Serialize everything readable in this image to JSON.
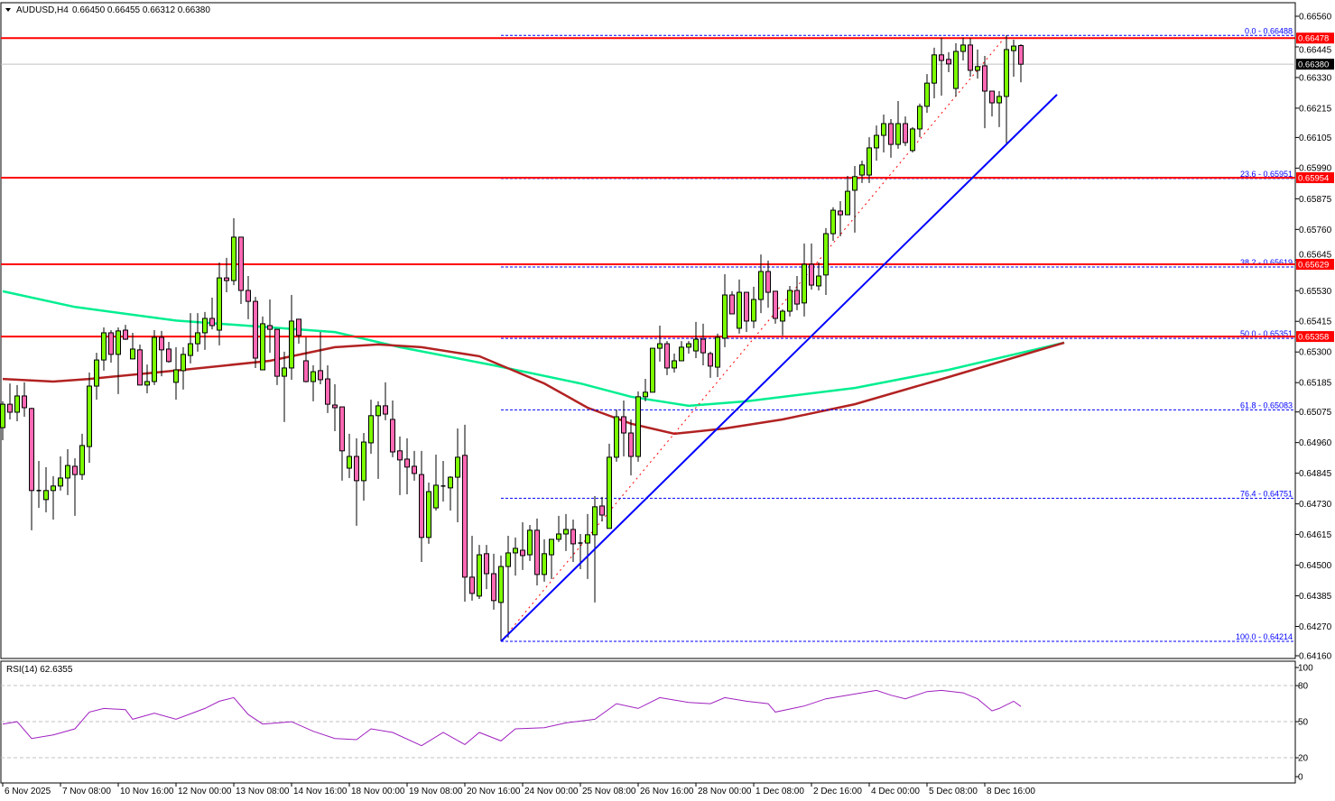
{
  "header": {
    "symbol": "AUDUSD,H4",
    "ohlc": "0.66450 0.66455 0.66312 0.66380",
    "menu_icon": "triangle-down-icon"
  },
  "chart_data": {
    "type": "candlestick",
    "symbol": "AUDUSD",
    "timeframe": "H4",
    "ylim": [
      0.6415,
      0.6661
    ],
    "grid": false,
    "y_ticks": [
      "0.66560",
      "0.66445",
      "0.66330",
      "0.66215",
      "0.66105",
      "0.65990",
      "0.65875",
      "0.65760",
      "0.65645",
      "0.65530",
      "0.65415",
      "0.65300",
      "0.65185",
      "0.65075",
      "0.64960",
      "0.64845",
      "0.64730",
      "0.64615",
      "0.64500",
      "0.64385",
      "0.64270",
      "0.64160"
    ],
    "x_labels": [
      "6 Nov 2025",
      "7 Nov 08:00",
      "10 Nov 16:00",
      "12 Nov 00:00",
      "13 Nov 08:00",
      "14 Nov 16:00",
      "18 Nov 00:00",
      "19 Nov 08:00",
      "20 Nov 16:00",
      "24 Nov 00:00",
      "25 Nov 08:00",
      "26 Nov 16:00",
      "28 Nov 00:00",
      "1 Dec 08:00",
      "2 Dec 16:00",
      "4 Dec 00:00",
      "5 Dec 08:00",
      "8 Dec 16:00"
    ],
    "candle_fields": [
      "open",
      "high",
      "low",
      "close"
    ],
    "candles": [
      [
        0.65016,
        0.65115,
        0.64969,
        0.65104
      ],
      [
        0.65104,
        0.65182,
        0.65047,
        0.65074
      ],
      [
        0.65074,
        0.65176,
        0.6504,
        0.65135
      ],
      [
        0.65135,
        0.65186,
        0.65057,
        0.65091
      ],
      [
        0.65088,
        0.65091,
        0.64631,
        0.6478
      ],
      [
        0.6478,
        0.64891,
        0.64715,
        0.64776
      ],
      [
        0.64746,
        0.64868,
        0.64698,
        0.6478
      ],
      [
        0.6478,
        0.64834,
        0.64671,
        0.64797
      ],
      [
        0.64797,
        0.64908,
        0.6478,
        0.64827
      ],
      [
        0.64827,
        0.64935,
        0.64763,
        0.64874
      ],
      [
        0.64871,
        0.64901,
        0.64685,
        0.6484
      ],
      [
        0.6484,
        0.64993,
        0.6482,
        0.64949
      ],
      [
        0.64945,
        0.65223,
        0.64884,
        0.65172
      ],
      [
        0.65172,
        0.65297,
        0.65121,
        0.6527
      ],
      [
        0.6527,
        0.65392,
        0.6523,
        0.65372
      ],
      [
        0.65372,
        0.65382,
        0.6526,
        0.65291
      ],
      [
        0.65291,
        0.65392,
        0.65142,
        0.65379
      ],
      [
        0.65382,
        0.65402,
        0.65345,
        0.65348
      ],
      [
        0.65274,
        0.65372,
        0.65274,
        0.65311
      ],
      [
        0.65308,
        0.65328,
        0.65176,
        0.65176
      ],
      [
        0.65176,
        0.65253,
        0.65145,
        0.65189
      ],
      [
        0.65189,
        0.65382,
        0.65176,
        0.65355
      ],
      [
        0.65355,
        0.65379,
        0.65209,
        0.65308
      ],
      [
        0.65311,
        0.65338,
        0.6526,
        0.65264
      ],
      [
        0.65186,
        0.65318,
        0.65121,
        0.65233
      ],
      [
        0.6523,
        0.65318,
        0.65159,
        0.65291
      ],
      [
        0.65287,
        0.65446,
        0.65257,
        0.65331
      ],
      [
        0.65331,
        0.65446,
        0.65301,
        0.65372
      ],
      [
        0.65372,
        0.6545,
        0.65308,
        0.65426
      ],
      [
        0.65426,
        0.65504,
        0.65385,
        0.65399
      ],
      [
        0.65382,
        0.65636,
        0.65325,
        0.65578
      ],
      [
        0.65578,
        0.65653,
        0.65524,
        0.65568
      ],
      [
        0.65568,
        0.65802,
        0.65551,
        0.65731
      ],
      [
        0.65731,
        0.65731,
        0.6548,
        0.65531
      ],
      [
        0.65531,
        0.65585,
        0.65423,
        0.6549
      ],
      [
        0.6549,
        0.65507,
        0.6524,
        0.65277
      ],
      [
        0.65233,
        0.65433,
        0.65233,
        0.65406
      ],
      [
        0.65399,
        0.65497,
        0.65297,
        0.65385
      ],
      [
        0.65385,
        0.65385,
        0.65176,
        0.65209
      ],
      [
        0.65209,
        0.65301,
        0.65037,
        0.6524
      ],
      [
        0.6524,
        0.65514,
        0.65196,
        0.65416
      ],
      [
        0.65423,
        0.65423,
        0.65331,
        0.65362
      ],
      [
        0.65267,
        0.65355,
        0.65186,
        0.65189
      ],
      [
        0.65189,
        0.6525,
        0.65115,
        0.65226
      ],
      [
        0.6523,
        0.65375,
        0.65179,
        0.65196
      ],
      [
        0.65199,
        0.6525,
        0.65071,
        0.65104
      ],
      [
        0.65101,
        0.65179,
        0.65003,
        0.65091
      ],
      [
        0.65094,
        0.65094,
        0.64817,
        0.64929
      ],
      [
        0.64864,
        0.64993,
        0.64827,
        0.64908
      ],
      [
        0.64908,
        0.64976,
        0.64648,
        0.64817
      ],
      [
        0.64817,
        0.64996,
        0.64742,
        0.64962
      ],
      [
        0.64959,
        0.65121,
        0.64918,
        0.65061
      ],
      [
        0.65061,
        0.65115,
        0.64824,
        0.65098
      ],
      [
        0.65098,
        0.65186,
        0.65044,
        0.65067
      ],
      [
        0.65047,
        0.65118,
        0.64905,
        0.64925
      ],
      [
        0.64929,
        0.64983,
        0.64763,
        0.64895
      ],
      [
        0.64898,
        0.64976,
        0.64766,
        0.64868
      ],
      [
        0.64871,
        0.64929,
        0.64817,
        0.64844
      ],
      [
        0.6484,
        0.64929,
        0.64512,
        0.64604
      ],
      [
        0.64604,
        0.6481,
        0.6458,
        0.64776
      ],
      [
        0.64715,
        0.64915,
        0.64705,
        0.648
      ],
      [
        0.64797,
        0.64891,
        0.64739,
        0.64797
      ],
      [
        0.6479,
        0.64834,
        0.64705,
        0.6483
      ],
      [
        0.6483,
        0.65013,
        0.64661,
        0.64905
      ],
      [
        0.64912,
        0.65027,
        0.64363,
        0.64455
      ],
      [
        0.64455,
        0.6461,
        0.64367,
        0.64394
      ],
      [
        0.64384,
        0.64576,
        0.64373,
        0.64539
      ],
      [
        0.64543,
        0.64576,
        0.6441,
        0.64468
      ],
      [
        0.64468,
        0.64543,
        0.64333,
        0.64367
      ],
      [
        0.6436,
        0.64536,
        0.64214,
        0.64495
      ],
      [
        0.64495,
        0.6461,
        0.64228,
        0.64546
      ],
      [
        0.64546,
        0.64604,
        0.64461,
        0.64563
      ],
      [
        0.64556,
        0.64661,
        0.64482,
        0.64536
      ],
      [
        0.64539,
        0.64651,
        0.64516,
        0.64631
      ],
      [
        0.64631,
        0.64675,
        0.64424,
        0.64465
      ],
      [
        0.64465,
        0.64597,
        0.64438,
        0.64543
      ],
      [
        0.64539,
        0.64597,
        0.64448,
        0.64597
      ],
      [
        0.64597,
        0.64685,
        0.64587,
        0.64617
      ],
      [
        0.64617,
        0.64692,
        0.64553,
        0.64634
      ],
      [
        0.64634,
        0.64671,
        0.64512,
        0.6458
      ],
      [
        0.6458,
        0.64617,
        0.64485,
        0.64583
      ],
      [
        0.64583,
        0.64692,
        0.64448,
        0.64614
      ],
      [
        0.64614,
        0.64759,
        0.6436,
        0.64719
      ],
      [
        0.64722,
        0.64756,
        0.64664,
        0.64688
      ],
      [
        0.64638,
        0.64956,
        0.64638,
        0.64905
      ],
      [
        0.64905,
        0.65084,
        0.64888,
        0.65057
      ],
      [
        0.65057,
        0.65118,
        0.64908,
        0.64996
      ],
      [
        0.64996,
        0.65047,
        0.64837,
        0.64908
      ],
      [
        0.64908,
        0.65152,
        0.64888,
        0.65132
      ],
      [
        0.65132,
        0.65199,
        0.65115,
        0.65149
      ],
      [
        0.65149,
        0.65314,
        0.65149,
        0.65314
      ],
      [
        0.65314,
        0.65399,
        0.65264,
        0.65331
      ],
      [
        0.65331,
        0.65341,
        0.65213,
        0.6524
      ],
      [
        0.6524,
        0.65294,
        0.65223,
        0.65267
      ],
      [
        0.65267,
        0.65341,
        0.65267,
        0.65318
      ],
      [
        0.65318,
        0.65341,
        0.65294,
        0.65331
      ],
      [
        0.65304,
        0.65413,
        0.65277,
        0.65348
      ],
      [
        0.65348,
        0.65406,
        0.6525,
        0.65297
      ],
      [
        0.65294,
        0.65301,
        0.65203,
        0.65247
      ],
      [
        0.65243,
        0.65369,
        0.65206,
        0.65355
      ],
      [
        0.65352,
        0.65592,
        0.65318,
        0.65514
      ],
      [
        0.65514,
        0.65528,
        0.65443,
        0.65443
      ],
      [
        0.65389,
        0.65572,
        0.65369,
        0.65524
      ],
      [
        0.65524,
        0.65524,
        0.65375,
        0.65416
      ],
      [
        0.65416,
        0.65545,
        0.65389,
        0.65497
      ],
      [
        0.65497,
        0.65666,
        0.65446,
        0.65602
      ],
      [
        0.65602,
        0.65643,
        0.65466,
        0.65524
      ],
      [
        0.65528,
        0.65528,
        0.65406,
        0.65426
      ],
      [
        0.65416,
        0.6546,
        0.65362,
        0.65453
      ],
      [
        0.65453,
        0.65548,
        0.65433,
        0.65531
      ],
      [
        0.65531,
        0.65585,
        0.65457,
        0.6548
      ],
      [
        0.65484,
        0.65707,
        0.65433,
        0.65629
      ],
      [
        0.65629,
        0.65707,
        0.65534,
        0.65551
      ],
      [
        0.65548,
        0.65636,
        0.65531,
        0.65585
      ],
      [
        0.65589,
        0.65765,
        0.65514,
        0.65744
      ],
      [
        0.65744,
        0.65843,
        0.65717,
        0.65832
      ],
      [
        0.65829,
        0.65866,
        0.65734,
        0.65815
      ],
      [
        0.65815,
        0.65961,
        0.65815,
        0.65903
      ],
      [
        0.65907,
        0.65998,
        0.65748,
        0.65958
      ],
      [
        0.65964,
        0.66018,
        0.65934,
        0.66002
      ],
      [
        0.65964,
        0.66106,
        0.65934,
        0.66066
      ],
      [
        0.66066,
        0.6615,
        0.66018,
        0.66113
      ],
      [
        0.66113,
        0.66191,
        0.66049,
        0.66157
      ],
      [
        0.66157,
        0.66174,
        0.66029,
        0.66079
      ],
      [
        0.66079,
        0.66242,
        0.66063,
        0.66157
      ],
      [
        0.66157,
        0.66184,
        0.66073,
        0.66086
      ],
      [
        0.66056,
        0.66144,
        0.66049,
        0.66137
      ],
      [
        0.66137,
        0.66232,
        0.66106,
        0.66222
      ],
      [
        0.66222,
        0.66343,
        0.66198,
        0.66309
      ],
      [
        0.66309,
        0.66442,
        0.66252,
        0.66415
      ],
      [
        0.66415,
        0.66479,
        0.66262,
        0.66394
      ],
      [
        0.66398,
        0.66425,
        0.6635,
        0.66381
      ],
      [
        0.66289,
        0.66459,
        0.66259,
        0.66428
      ],
      [
        0.66428,
        0.66479,
        0.66394,
        0.66452
      ],
      [
        0.66452,
        0.66478,
        0.66333,
        0.66357
      ],
      [
        0.66357,
        0.66435,
        0.66326,
        0.66371
      ],
      [
        0.66374,
        0.66411,
        0.6614,
        0.66279
      ],
      [
        0.66279,
        0.66279,
        0.66184,
        0.66235
      ],
      [
        0.66235,
        0.66279,
        0.66144,
        0.66259
      ],
      [
        0.66259,
        0.66488,
        0.66083,
        0.66435
      ],
      [
        0.66431,
        0.66472,
        0.66333,
        0.66448
      ],
      [
        0.6645,
        0.66455,
        0.66312,
        0.6638
      ]
    ],
    "current_price": "0.66380",
    "horizontal_levels": [
      "0.66478",
      "0.65954",
      "0.65629",
      "0.65358"
    ],
    "fibonacci": {
      "from": {
        "bar": 69,
        "price": 0.64214
      },
      "to": {
        "bar": 139,
        "price": 0.66488
      },
      "levels": [
        {
          "label": "0.0 - 0.66488",
          "value": 0.66488
        },
        {
          "label": "23.6 - 0.65951",
          "value": 0.65951
        },
        {
          "label": "38.2 - 0.65619",
          "value": 0.65619
        },
        {
          "label": "50.0 - 0.65351",
          "value": 0.65351
        },
        {
          "label": "61.8 - 0.65083",
          "value": 0.65083
        },
        {
          "label": "76.4 - 0.64751",
          "value": 0.64751
        },
        {
          "label": "100.0 - 0.64214",
          "value": 0.64214
        }
      ]
    },
    "trendline": {
      "from": {
        "bar": 69,
        "price": 0.64214
      },
      "to": {
        "bar": 146,
        "price": 0.66266
      }
    },
    "moving_averages": [
      {
        "color": "#00EE90",
        "points": [
          [
            0,
            0.65528
          ],
          [
            10,
            0.65469
          ],
          [
            24,
            0.65418
          ],
          [
            46,
            0.65375
          ],
          [
            55,
            0.65318
          ],
          [
            68,
            0.6525
          ],
          [
            80,
            0.65182
          ],
          [
            87,
            0.65132
          ],
          [
            95,
            0.65098
          ],
          [
            103,
            0.65115
          ],
          [
            118,
            0.65165
          ],
          [
            131,
            0.65233
          ],
          [
            147,
            0.65335
          ]
        ]
      },
      {
        "color": "#B22222",
        "points": [
          [
            0,
            0.65199
          ],
          [
            7,
            0.65189
          ],
          [
            12,
            0.65199
          ],
          [
            25,
            0.65233
          ],
          [
            37,
            0.65267
          ],
          [
            46,
            0.65318
          ],
          [
            52,
            0.65328
          ],
          [
            58,
            0.65318
          ],
          [
            66,
            0.65284
          ],
          [
            75,
            0.65182
          ],
          [
            81,
            0.65091
          ],
          [
            87,
            0.65031
          ],
          [
            93,
            0.64993
          ],
          [
            100,
            0.65013
          ],
          [
            108,
            0.65047
          ],
          [
            118,
            0.65104
          ],
          [
            131,
            0.65206
          ],
          [
            147,
            0.65335
          ]
        ]
      }
    ],
    "colors": {
      "bull": "#7CFC00",
      "bear": "#FF69B4",
      "level_line": "#FF0000",
      "fib": "#0000FF",
      "trendline": "#0000FF",
      "fib_trend": "#FF0000",
      "current_price_badge": "#000000"
    }
  },
  "rsi": {
    "label": "RSI(14) 62.6355",
    "period": 14,
    "value": 62.6355,
    "ylim": [
      0,
      100
    ],
    "levels": [
      80,
      50,
      20
    ],
    "ticks": [
      "100",
      "80",
      "50",
      "20",
      "0"
    ],
    "color": "#A020C0",
    "points": [
      [
        0,
        48
      ],
      [
        2,
        50
      ],
      [
        4,
        36
      ],
      [
        7,
        39
      ],
      [
        10,
        44
      ],
      [
        12,
        58
      ],
      [
        14,
        61
      ],
      [
        17,
        60
      ],
      [
        18,
        52
      ],
      [
        21,
        57
      ],
      [
        24,
        52
      ],
      [
        28,
        61
      ],
      [
        30,
        67
      ],
      [
        32,
        70
      ],
      [
        34,
        56
      ],
      [
        36,
        48
      ],
      [
        40,
        50
      ],
      [
        43,
        42
      ],
      [
        46,
        36
      ],
      [
        49,
        35
      ],
      [
        51,
        44
      ],
      [
        54,
        41
      ],
      [
        58,
        30
      ],
      [
        61,
        41
      ],
      [
        64,
        31
      ],
      [
        66,
        41
      ],
      [
        69,
        34
      ],
      [
        71,
        44
      ],
      [
        75,
        45
      ],
      [
        78,
        49
      ],
      [
        82,
        52
      ],
      [
        85,
        65
      ],
      [
        88,
        61
      ],
      [
        91,
        70
      ],
      [
        95,
        66
      ],
      [
        98,
        65
      ],
      [
        100,
        70
      ],
      [
        103,
        67
      ],
      [
        106,
        65
      ],
      [
        107,
        58
      ],
      [
        111,
        63
      ],
      [
        114,
        69
      ],
      [
        118,
        73
      ],
      [
        121,
        76
      ],
      [
        123,
        72
      ],
      [
        125,
        69
      ],
      [
        128,
        75
      ],
      [
        130,
        76
      ],
      [
        133,
        74
      ],
      [
        135,
        69
      ],
      [
        137,
        59
      ],
      [
        138,
        61
      ],
      [
        140,
        67
      ],
      [
        141,
        62.6355
      ]
    ]
  }
}
